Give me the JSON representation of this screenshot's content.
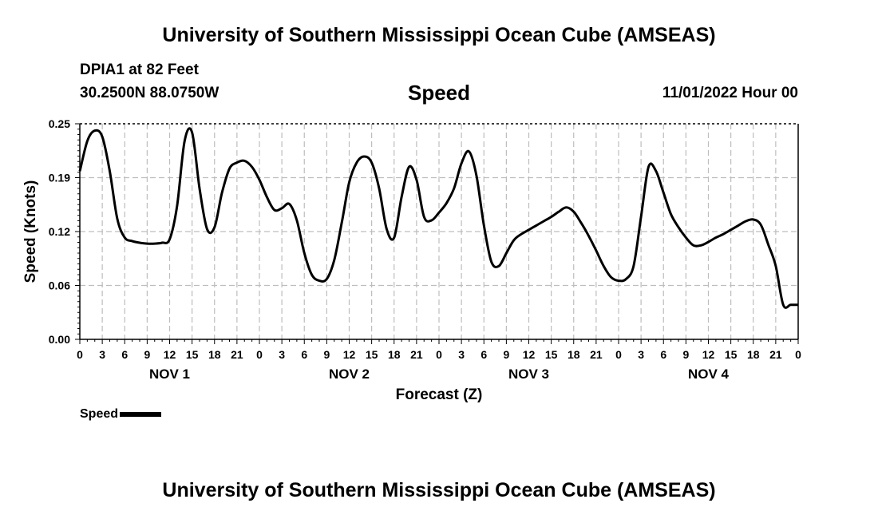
{
  "header": {
    "title": "University of Southern Mississippi Ocean Cube (AMSEAS)",
    "station": "DPIA1 at 82 Feet",
    "coords": "30.2500N  88.0750W",
    "parameter": "Speed",
    "timestamp": "11/01/2022 Hour 00"
  },
  "footer": {
    "title": "University of Southern Mississippi Ocean Cube (AMSEAS)"
  },
  "legend": {
    "label": "Speed"
  },
  "chart_data": {
    "type": "line",
    "title": "Speed",
    "xlabel": "Forecast (Z)",
    "ylabel": "Speed (Knots)",
    "ylim": [
      0,
      0.25
    ],
    "yticks": [
      "0.00",
      "0.06",
      "0.12",
      "0.19",
      "0.25"
    ],
    "xlim": [
      0,
      96
    ],
    "xtick_labels": [
      "0",
      "3",
      "6",
      "9",
      "12",
      "15",
      "18",
      "21",
      "0",
      "3",
      "6",
      "9",
      "12",
      "15",
      "18",
      "21",
      "0",
      "3",
      "6",
      "9",
      "12",
      "15",
      "18",
      "21",
      "0",
      "3",
      "6",
      "9",
      "12",
      "15",
      "18",
      "21",
      "0"
    ],
    "day_labels": [
      {
        "label": "NOV 1",
        "hour": 12
      },
      {
        "label": "NOV 2",
        "hour": 36
      },
      {
        "label": "NOV 3",
        "hour": 60
      },
      {
        "label": "NOV 4",
        "hour": 84
      }
    ],
    "series": [
      {
        "name": "Speed",
        "x": [
          0,
          1,
          2,
          3,
          4,
          5,
          6,
          7,
          8,
          9,
          10,
          11,
          12,
          13,
          14,
          15,
          16,
          17,
          18,
          19,
          20,
          21,
          22,
          23,
          24,
          25,
          26,
          27,
          28,
          29,
          30,
          31,
          32,
          33,
          34,
          35,
          36,
          37,
          38,
          39,
          40,
          41,
          42,
          43,
          44,
          45,
          46,
          47,
          48,
          49,
          50,
          51,
          52,
          53,
          54,
          55,
          56,
          57,
          58,
          59,
          60,
          61,
          62,
          63,
          64,
          65,
          66,
          67,
          68,
          69,
          70,
          71,
          72,
          73,
          74,
          75,
          76,
          77,
          78,
          79,
          80,
          81,
          82,
          83,
          84,
          85,
          86,
          87,
          88,
          89,
          90,
          91,
          92,
          93,
          94,
          95,
          96
        ],
        "values": [
          0.195,
          0.23,
          0.242,
          0.235,
          0.195,
          0.14,
          0.118,
          0.114,
          0.112,
          0.111,
          0.111,
          0.112,
          0.116,
          0.155,
          0.23,
          0.24,
          0.175,
          0.128,
          0.13,
          0.17,
          0.198,
          0.205,
          0.207,
          0.2,
          0.185,
          0.165,
          0.15,
          0.152,
          0.157,
          0.138,
          0.1,
          0.075,
          0.068,
          0.07,
          0.092,
          0.135,
          0.182,
          0.205,
          0.212,
          0.205,
          0.175,
          0.128,
          0.118,
          0.165,
          0.2,
          0.185,
          0.142,
          0.138,
          0.147,
          0.158,
          0.175,
          0.204,
          0.218,
          0.19,
          0.132,
          0.09,
          0.085,
          0.1,
          0.115,
          0.122,
          0.127,
          0.132,
          0.137,
          0.142,
          0.148,
          0.153,
          0.148,
          0.135,
          0.12,
          0.103,
          0.085,
          0.072,
          0.068,
          0.07,
          0.085,
          0.142,
          0.2,
          0.195,
          0.17,
          0.145,
          0.13,
          0.118,
          0.109,
          0.109,
          0.113,
          0.118,
          0.122,
          0.127,
          0.132,
          0.137,
          0.139,
          0.133,
          0.11,
          0.085,
          0.04,
          0.04,
          0.04
        ]
      }
    ]
  }
}
